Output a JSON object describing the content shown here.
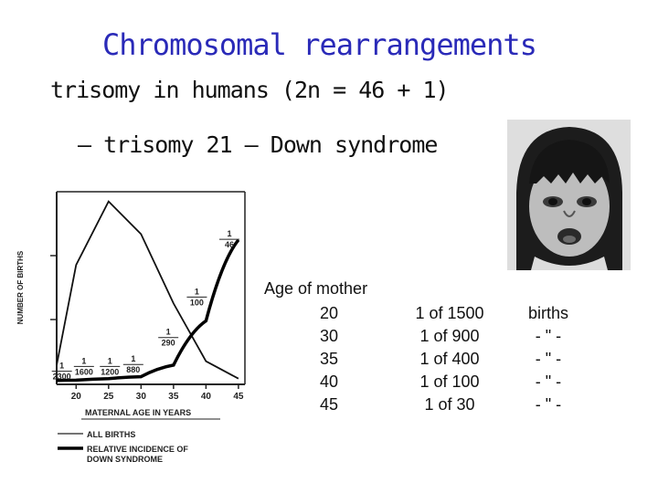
{
  "slide": {
    "title": "Chromosomal rearrangements",
    "subtitle": "trisomy in humans (2n = 46 + 1)",
    "bullet": "– trisomy 21 – Down syndrome"
  },
  "figure": {
    "ylabel": "NUMBER OF BIRTHS",
    "xlabel": "MATERNAL AGE IN YEARS",
    "x_ticks": [
      "20",
      "25",
      "30",
      "35",
      "40",
      "45"
    ],
    "legend": {
      "all_births": "ALL BIRTHS",
      "relative_line1": "RELATIVE INCIDENCE OF",
      "relative_line2": "DOWN SYNDROME"
    },
    "incidence_labels": [
      {
        "num": "1",
        "den": "2300"
      },
      {
        "num": "1",
        "den": "1600"
      },
      {
        "num": "1",
        "den": "1200"
      },
      {
        "num": "1",
        "den": "880"
      },
      {
        "num": "1",
        "den": "290"
      },
      {
        "num": "1",
        "den": "100"
      },
      {
        "num": "1",
        "den": "46"
      }
    ]
  },
  "table": {
    "header": "Age of mother",
    "ages": [
      "20",
      "30",
      "35",
      "40",
      "45"
    ],
    "rates": [
      "1 of 1500",
      "1 of 900",
      "1 of 400",
      "1 of 100",
      "1 of 30"
    ],
    "units": [
      "births",
      "- \" -",
      "- \" -",
      "- \" -",
      "- \" -"
    ]
  },
  "chart_data": {
    "type": "line",
    "xlabel": "MATERNAL AGE IN YEARS",
    "ylabel": "NUMBER OF BIRTHS",
    "x": [
      17,
      20,
      25,
      30,
      35,
      40,
      45
    ],
    "series": [
      {
        "name": "ALL BIRTHS",
        "values": [
          0.1,
          0.62,
          0.95,
          0.78,
          0.42,
          0.12,
          0.03
        ]
      },
      {
        "name": "RELATIVE INCIDENCE OF DOWN SYNDROME",
        "values": [
          0.02,
          0.022,
          0.03,
          0.04,
          0.1,
          0.33,
          0.75
        ]
      }
    ],
    "xlim": [
      17,
      46
    ],
    "ylim": [
      0,
      1
    ]
  }
}
